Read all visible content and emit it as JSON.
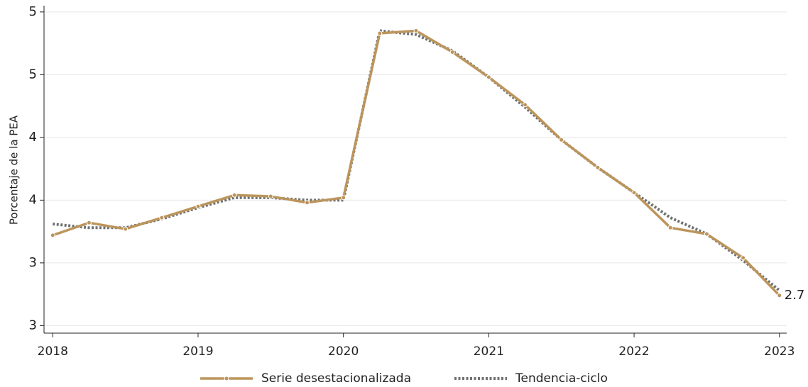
{
  "chart_data": {
    "type": "line",
    "ylabel": "Porcentaje de la PEA",
    "x": [
      2018,
      2018.25,
      2018.5,
      2018.75,
      2019,
      2019.25,
      2019.5,
      2019.75,
      2020,
      2020.25,
      2020.5,
      2020.75,
      2021,
      2021.25,
      2021.5,
      2021.75,
      2022,
      2022.25,
      2022.5,
      2022.75,
      2023
    ],
    "series": [
      {
        "name": "Serie desestacionalizada",
        "color": "#bc955c",
        "style": "solid",
        "values": [
          3.22,
          3.32,
          3.27,
          3.36,
          3.45,
          3.54,
          3.53,
          3.48,
          3.52,
          4.83,
          4.85,
          4.68,
          4.48,
          4.26,
          3.98,
          3.76,
          3.56,
          3.28,
          3.23,
          3.04,
          2.74
        ],
        "value_labels": [
          null,
          null,
          null,
          null,
          null,
          null,
          null,
          null,
          null,
          null,
          null,
          null,
          null,
          null,
          null,
          null,
          null,
          null,
          null,
          null,
          "2.7"
        ]
      },
      {
        "name": "Tendencia-ciclo",
        "color": "#6f7271",
        "style": "dotted",
        "values": [
          3.31,
          3.28,
          3.28,
          3.35,
          3.44,
          3.52,
          3.52,
          3.5,
          3.5,
          4.85,
          4.82,
          4.69,
          4.48,
          4.24,
          3.98,
          3.76,
          3.56,
          3.36,
          3.23,
          3.02,
          2.78
        ]
      }
    ],
    "xlim": [
      2017.94,
      2023.05
    ],
    "xticks": [
      2018,
      2019,
      2020,
      2021,
      2022,
      2023
    ],
    "ylim": [
      2.44,
      5.05
    ],
    "yticks": [
      {
        "value": 2.5,
        "label": "3"
      },
      3,
      {
        "value": 3.5,
        "label": "4"
      },
      4,
      {
        "value": 4.5,
        "label": "5"
      },
      5
    ],
    "grid": true
  }
}
